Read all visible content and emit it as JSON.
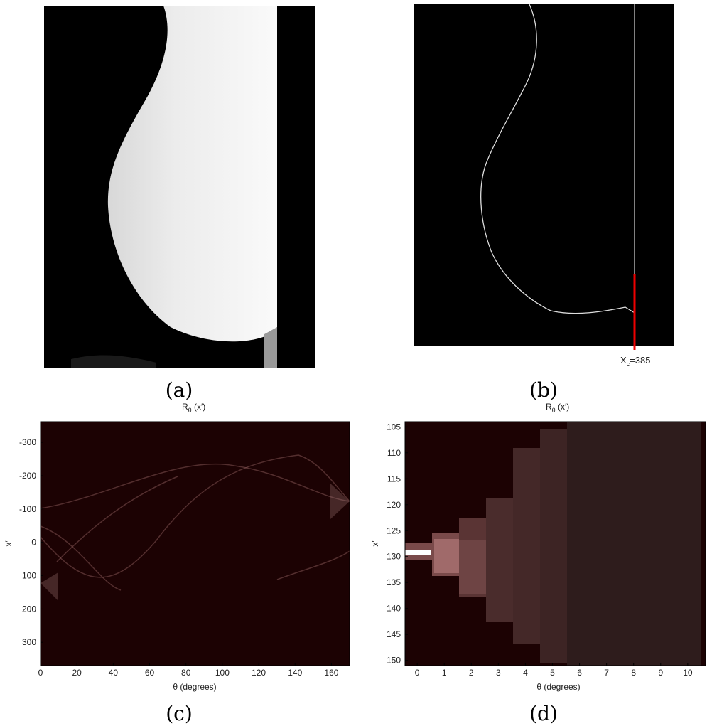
{
  "panels": [
    {
      "caption": "(a)"
    },
    {
      "caption": "(b)",
      "annotation": {
        "base": "X",
        "sub": "c",
        "rest": "=385"
      }
    },
    {
      "caption": "(c)",
      "title": {
        "base": "R",
        "sub": "θ",
        "rest": " (x′)"
      },
      "xlabel": "θ (degrees)",
      "ylabel": "x′",
      "xlim": [
        0,
        170
      ],
      "ylim": [
        -362,
        370
      ],
      "y_reversed": true,
      "xticks": [
        0,
        20,
        40,
        60,
        80,
        100,
        120,
        140,
        160
      ],
      "yticks": [
        -300,
        -200,
        -100,
        0,
        100,
        200,
        300
      ]
    },
    {
      "caption": "(d)",
      "title": {
        "base": "R",
        "sub": "θ",
        "rest": " (x′)"
      },
      "xlabel": "θ (degrees)",
      "ylabel": "x′",
      "xlim": [
        -0.45,
        10.66
      ],
      "ylim": [
        104,
        151
      ],
      "y_reversed": true,
      "xticks": [
        0,
        1,
        2,
        3,
        4,
        5,
        6,
        7,
        8,
        9,
        10
      ],
      "yticks": [
        105,
        110,
        115,
        120,
        125,
        130,
        135,
        140,
        145,
        150
      ]
    }
  ]
}
